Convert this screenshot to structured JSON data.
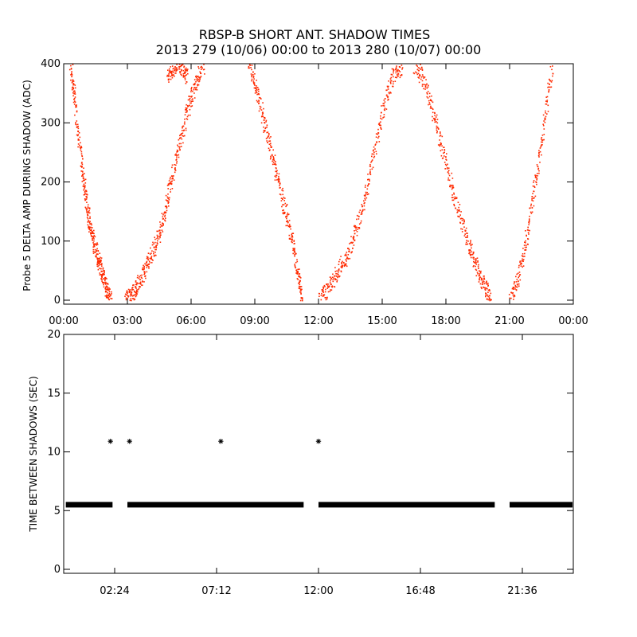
{
  "title_line1": "RBSP-B SHORT ANT. SHADOW TIMES",
  "title_line2": "2013 279 (10/06) 00:00 to 2013 280 (10/07) 00:00",
  "chart_data": [
    {
      "type": "scatter",
      "ylabel": "Probe 5 DELTA AMP DURING SHADOW (ADC)",
      "xlabel": "",
      "xlim": [
        "00:00",
        "24:00"
      ],
      "ylim": [
        0,
        400
      ],
      "x_ticks": [
        "00:00",
        "03:00",
        "06:00",
        "09:00",
        "12:00",
        "15:00",
        "18:00",
        "21:00",
        "00:00"
      ],
      "y_ticks": [
        "0",
        "100",
        "200",
        "300",
        "400"
      ],
      "grid": false,
      "marker_color": "#ff2a00",
      "series": [
        {
          "x_hours": [
            0.3,
            0.5,
            0.8,
            1.0,
            1.2,
            1.4,
            1.6,
            1.8,
            2.0,
            2.2
          ],
          "values": [
            400,
            340,
            240,
            180,
            130,
            100,
            70,
            45,
            20,
            0
          ]
        },
        {
          "x_hours": [
            2.9,
            3.2,
            3.5,
            3.9,
            4.3,
            4.7,
            5.0,
            5.4,
            5.8,
            6.2,
            6.6
          ],
          "values": [
            0,
            10,
            30,
            60,
            95,
            140,
            200,
            260,
            320,
            370,
            400
          ]
        },
        {
          "x_hours": [
            4.9,
            5.2,
            5.5,
            5.8
          ],
          "values": [
            380,
            400,
            400,
            380
          ]
        },
        {
          "x_hours": [
            8.7,
            9.1,
            9.5,
            9.9,
            10.3,
            10.7,
            11.0,
            11.2
          ],
          "values": [
            400,
            350,
            290,
            230,
            170,
            110,
            50,
            0
          ]
        },
        {
          "x_hours": [
            12.0,
            12.5,
            13.0,
            13.5,
            14.0,
            14.5,
            15.0,
            15.5,
            16.0
          ],
          "values": [
            0,
            25,
            55,
            90,
            150,
            230,
            320,
            380,
            400
          ]
        },
        {
          "x_hours": [
            16.5,
            17.0,
            17.5,
            18.0,
            18.5,
            19.0,
            19.4,
            19.8,
            20.1
          ],
          "values": [
            400,
            370,
            300,
            230,
            160,
            100,
            60,
            25,
            0
          ]
        },
        {
          "x_hours": [
            21.0,
            21.4,
            21.8,
            22.2,
            22.6,
            23.0
          ],
          "values": [
            0,
            40,
            110,
            200,
            300,
            400
          ]
        }
      ]
    },
    {
      "type": "scatter",
      "ylabel": "TIME BETWEEN SHADOWS (SEC)",
      "xlabel": "",
      "xlim": [
        "00:00",
        "24:00"
      ],
      "ylim": [
        0,
        20
      ],
      "x_ticks": [
        "02:24",
        "07:12",
        "12:00",
        "16:48",
        "21:36"
      ],
      "y_ticks": [
        "0",
        "5",
        "10",
        "15",
        "20"
      ],
      "grid": false,
      "marker": "asterisk",
      "baseline_value": 5.5,
      "baseline_ranges_hours": [
        [
          0.1,
          2.3
        ],
        [
          3.0,
          11.3
        ],
        [
          12.0,
          20.3
        ],
        [
          21.0,
          24.0
        ]
      ],
      "outliers": [
        {
          "x_hours": 2.2,
          "value": 10.9
        },
        {
          "x_hours": 3.1,
          "value": 10.9
        },
        {
          "x_hours": 7.4,
          "value": 10.9
        },
        {
          "x_hours": 12.0,
          "value": 10.9
        }
      ]
    }
  ]
}
